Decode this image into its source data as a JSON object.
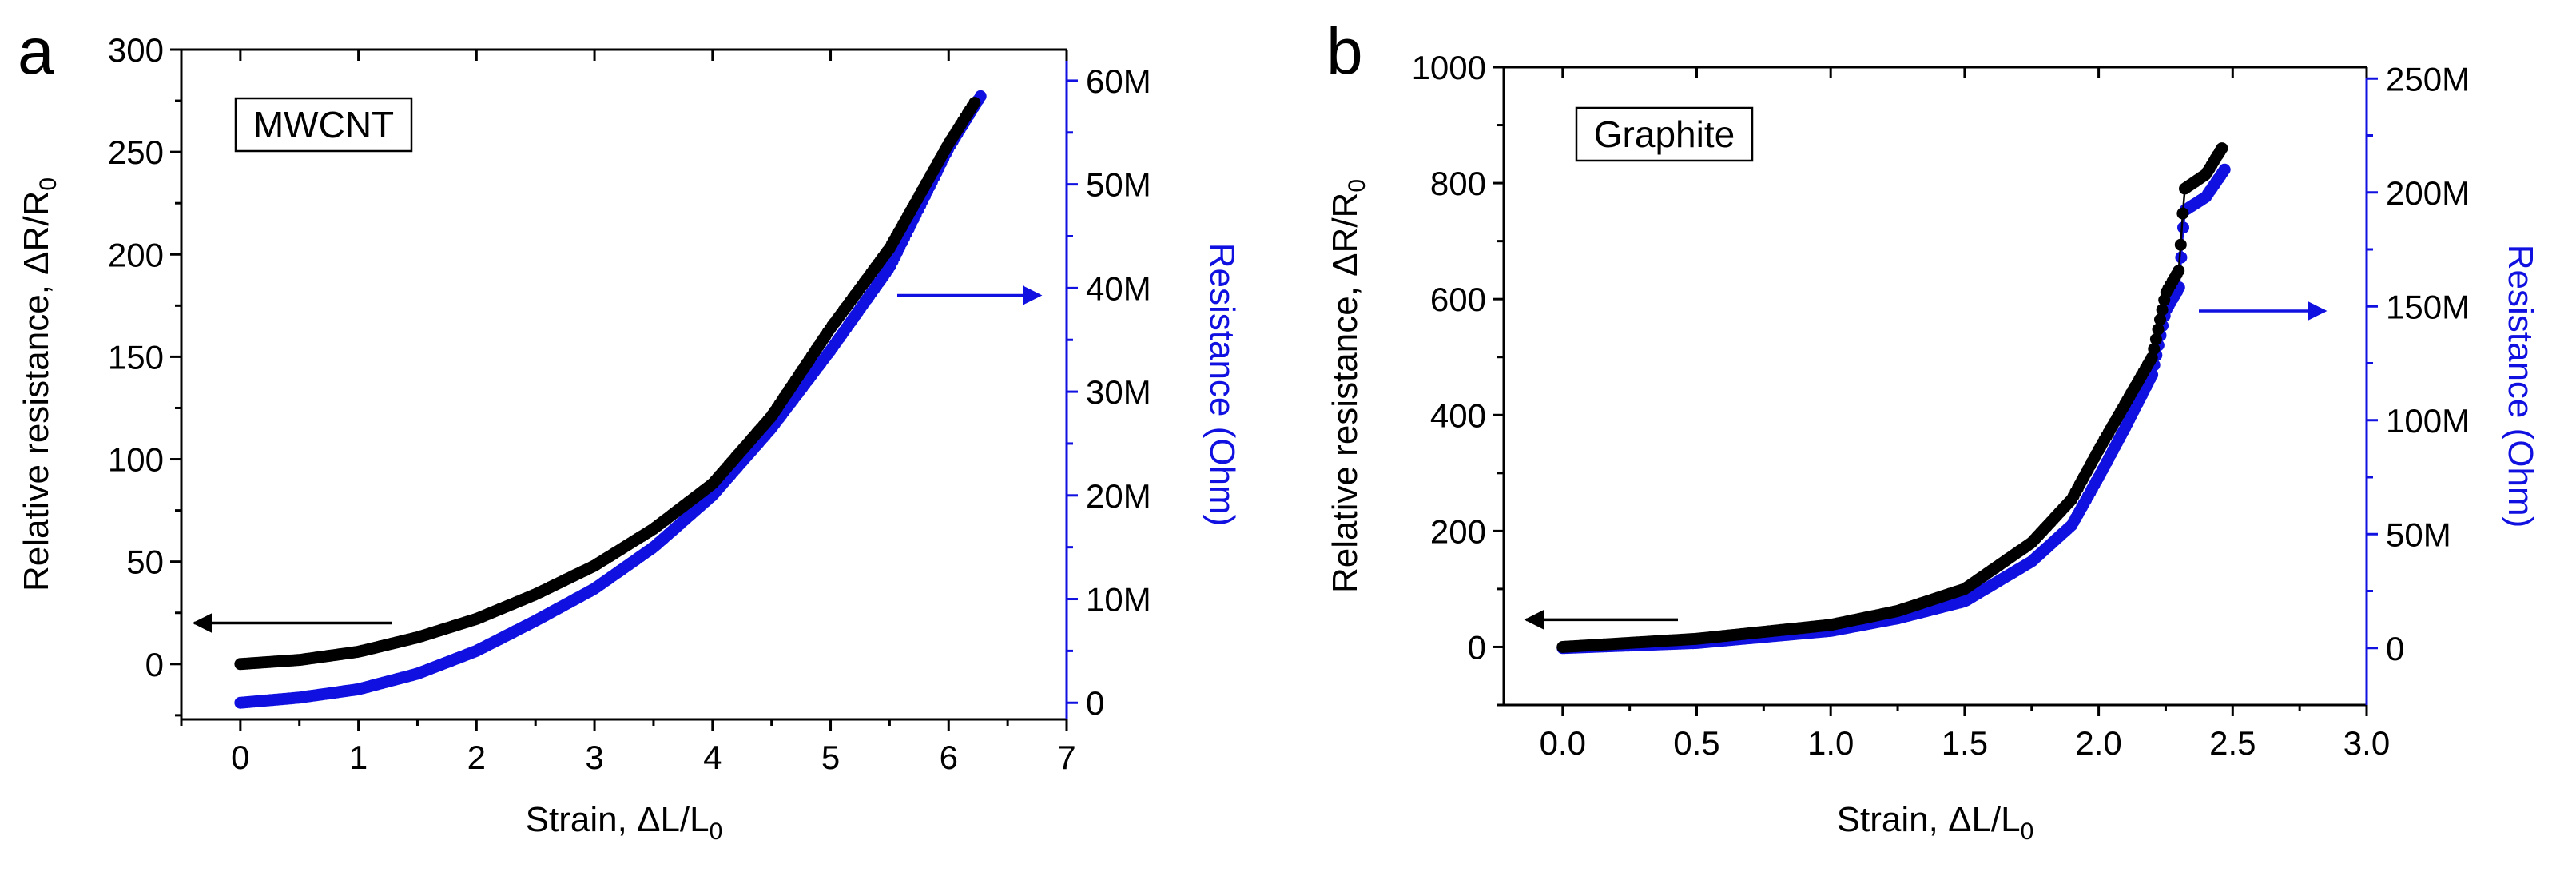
{
  "chart_data": [
    {
      "type": "scatter",
      "panel_label": "a",
      "annotation": "MWCNT",
      "xlabel": {
        "text": "Strain, ΔL/L",
        "sub": "0"
      },
      "ylabel": {
        "text": "Relative resistance, ΔR/R",
        "sub": "0"
      },
      "y2label": "Resistance (Ohm)",
      "xlim": [
        -0.5,
        7
      ],
      "ylim": [
        -27,
        300
      ],
      "y2lim": [
        -1.6,
        63
      ],
      "x_ticks": [
        0,
        1,
        2,
        3,
        4,
        5,
        6,
        7
      ],
      "x_tick_labels": [
        "0",
        "1",
        "2",
        "3",
        "4",
        "5",
        "6",
        "7"
      ],
      "y_ticks": [
        0,
        50,
        100,
        150,
        200,
        250,
        300
      ],
      "y_tick_labels": [
        "0",
        "50",
        "100",
        "150",
        "200",
        "250",
        "300"
      ],
      "y2_ticks": [
        0,
        10,
        20,
        30,
        40,
        50,
        60
      ],
      "y2_tick_labels": [
        "0",
        "10M",
        "20M",
        "30M",
        "40M",
        "50M",
        "60M"
      ],
      "series": [
        {
          "name": "Relative resistance",
          "axis": "left",
          "color": "#000000",
          "x": [
            0.0,
            0.5,
            1.0,
            1.5,
            2.0,
            2.5,
            3.0,
            3.5,
            4.0,
            4.5,
            5.0,
            5.5,
            6.0,
            6.22
          ],
          "y": [
            0,
            2,
            6,
            13,
            22,
            34,
            48,
            66,
            88,
            121,
            164,
            203,
            254,
            274
          ]
        },
        {
          "name": "Resistance (Ohm)",
          "axis": "right",
          "color": "#1010e0",
          "x": [
            0.0,
            0.5,
            1.0,
            1.5,
            2.0,
            2.5,
            3.0,
            3.5,
            4.0,
            4.5,
            5.0,
            5.5,
            6.0,
            6.27
          ],
          "y": [
            0.0,
            0.5,
            1.3,
            2.8,
            5.0,
            7.9,
            11.0,
            15.0,
            20.0,
            26.5,
            34.0,
            42.0,
            53.5,
            58.5
          ]
        }
      ],
      "arrows": [
        {
          "direction": "left",
          "color": "#000000",
          "axis": "left"
        },
        {
          "direction": "right",
          "color": "#1010e0",
          "axis": "right"
        }
      ]
    },
    {
      "type": "scatter",
      "panel_label": "b",
      "annotation": "Graphite",
      "xlabel": {
        "text": "Strain, ΔL/L",
        "sub": "0"
      },
      "ylabel": {
        "text": "Relative resistance, ΔR/R",
        "sub": "0"
      },
      "y2label": "Resistance (Ohm)",
      "xlim": [
        -0.22,
        3.0
      ],
      "ylim": [
        -100,
        1000
      ],
      "y2lim": [
        -25,
        255
      ],
      "x_ticks": [
        0.0,
        0.5,
        1.0,
        1.5,
        2.0,
        2.5,
        3.0
      ],
      "x_tick_labels": [
        "0.0",
        "0.5",
        "1.0",
        "1.5",
        "2.0",
        "2.5",
        "3.0"
      ],
      "y_ticks": [
        0,
        200,
        400,
        600,
        800,
        1000
      ],
      "y_tick_labels": [
        "0",
        "200",
        "400",
        "600",
        "800",
        "1000"
      ],
      "y2_ticks": [
        0,
        50,
        100,
        150,
        200,
        250
      ],
      "y2_tick_labels": [
        "0",
        "50M",
        "100M",
        "150M",
        "200M",
        "250M"
      ],
      "series": [
        {
          "name": "Relative resistance",
          "axis": "left",
          "color": "#000000",
          "x": [
            0.0,
            0.5,
            1.0,
            1.25,
            1.5,
            1.75,
            1.9,
            2.0,
            2.1,
            2.2,
            2.25,
            2.3,
            2.32,
            2.4,
            2.46
          ],
          "y": [
            0,
            14,
            38,
            62,
            100,
            180,
            255,
            340,
            420,
            500,
            610,
            650,
            790,
            815,
            860
          ]
        },
        {
          "name": "Resistance (Ohm)",
          "axis": "right",
          "color": "#1010e0",
          "x": [
            0.0,
            0.5,
            1.0,
            1.25,
            1.5,
            1.75,
            1.9,
            2.0,
            2.1,
            2.2,
            2.25,
            2.3,
            2.32,
            2.4,
            2.47
          ],
          "y": [
            0.0,
            2.2,
            7.5,
            13.0,
            20.5,
            38.0,
            54.0,
            75.0,
            97.0,
            120.0,
            148.0,
            158.0,
            192.0,
            198.0,
            210.0
          ]
        }
      ],
      "arrows": [
        {
          "direction": "left",
          "color": "#000000",
          "axis": "left"
        },
        {
          "direction": "right",
          "color": "#1010e0",
          "axis": "right"
        }
      ]
    }
  ]
}
